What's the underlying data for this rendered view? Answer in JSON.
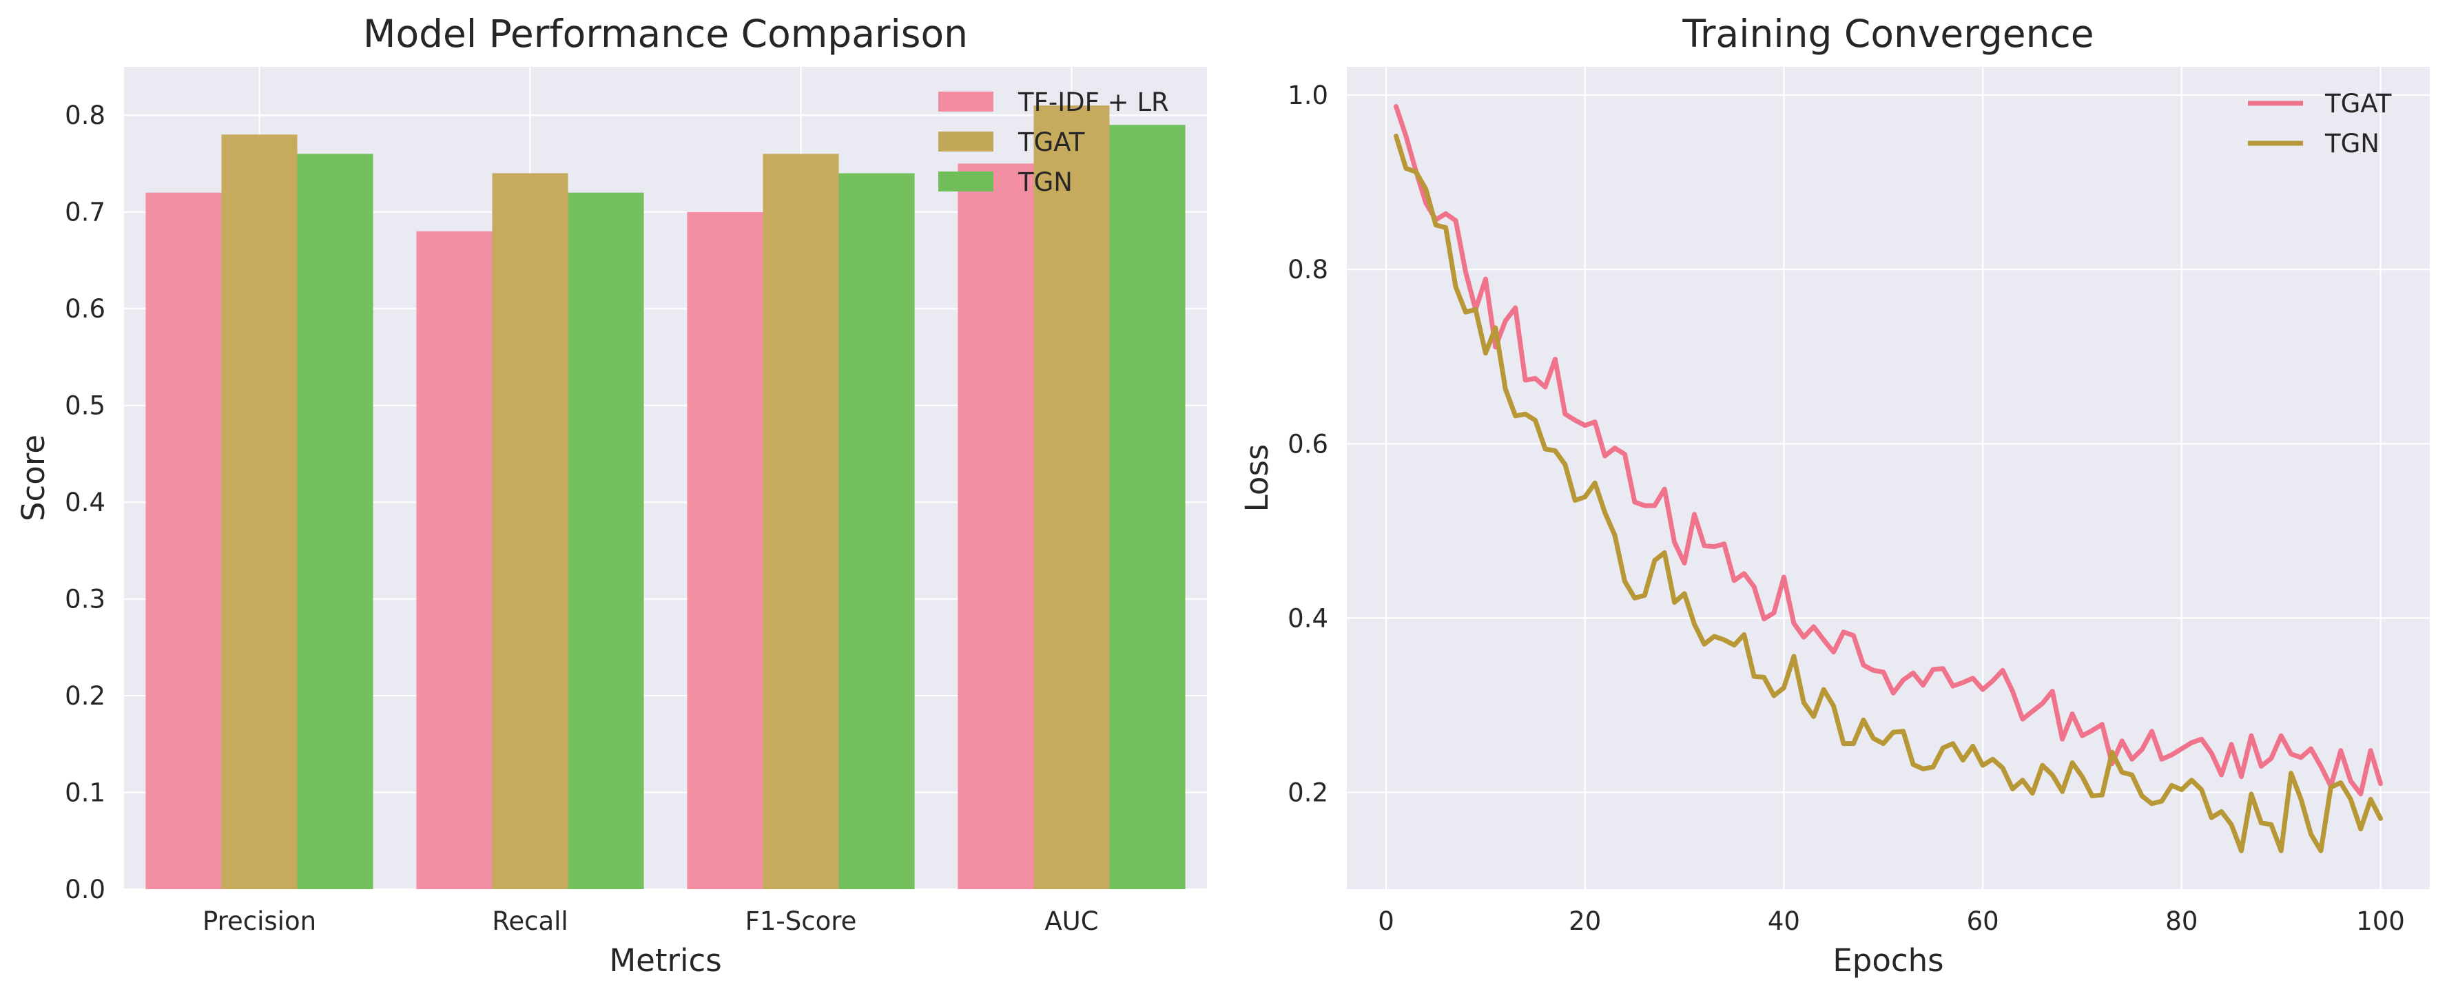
{
  "chart_data": [
    {
      "type": "bar",
      "title": "Model Performance Comparison",
      "xlabel": "Metrics",
      "ylabel": "Score",
      "categories": [
        "Precision",
        "Recall",
        "F1-Score",
        "AUC"
      ],
      "ylim": [
        0,
        0.85
      ],
      "yticks": [
        "0.0",
        "0.1",
        "0.2",
        "0.3",
        "0.4",
        "0.5",
        "0.6",
        "0.7",
        "0.8"
      ],
      "grid": true,
      "legend_position": "top-right",
      "series": [
        {
          "name": "TF-IDF + LR",
          "color": "#f38ba0",
          "values": [
            0.72,
            0.68,
            0.7,
            0.75
          ]
        },
        {
          "name": "TGAT",
          "color": "#c4a85a",
          "values": [
            0.78,
            0.74,
            0.76,
            0.81
          ]
        },
        {
          "name": "TGN",
          "color": "#6fbe5a",
          "values": [
            0.76,
            0.72,
            0.74,
            0.79
          ]
        }
      ]
    },
    {
      "type": "line",
      "title": "Training Convergence",
      "xlabel": "Epochs",
      "ylabel": "Loss",
      "xlim": [
        -3.95,
        104.95
      ],
      "ylim": [
        0.0889,
        1.0325
      ],
      "xticks": [
        "0",
        "20",
        "40",
        "60",
        "80",
        "100"
      ],
      "yticks": [
        "0.2",
        "0.4",
        "0.6",
        "0.8",
        "1.0"
      ],
      "grid": true,
      "legend_position": "top-right",
      "x_start": 1,
      "x_end": 100,
      "series": [
        {
          "name": "TGAT",
          "color": "#f0738c",
          "values": [
            0.987,
            0.953,
            0.913,
            0.876,
            0.857,
            0.864,
            0.856,
            0.797,
            0.754,
            0.789,
            0.711,
            0.741,
            0.756,
            0.673,
            0.675,
            0.665,
            0.697,
            0.634,
            0.627,
            0.621,
            0.625,
            0.586,
            0.595,
            0.588,
            0.533,
            0.529,
            0.529,
            0.548,
            0.487,
            0.463,
            0.519,
            0.483,
            0.482,
            0.485,
            0.443,
            0.451,
            0.436,
            0.399,
            0.406,
            0.447,
            0.394,
            0.378,
            0.39,
            0.375,
            0.361,
            0.384,
            0.38,
            0.346,
            0.34,
            0.338,
            0.314,
            0.329,
            0.337,
            0.323,
            0.341,
            0.342,
            0.322,
            0.326,
            0.331,
            0.318,
            0.328,
            0.34,
            0.316,
            0.284,
            0.293,
            0.302,
            0.316,
            0.261,
            0.29,
            0.265,
            0.271,
            0.278,
            0.233,
            0.259,
            0.238,
            0.249,
            0.27,
            0.238,
            0.243,
            0.25,
            0.257,
            0.261,
            0.245,
            0.22,
            0.255,
            0.218,
            0.265,
            0.23,
            0.239,
            0.265,
            0.244,
            0.24,
            0.25,
            0.23,
            0.207,
            0.248,
            0.213,
            0.198,
            0.248,
            0.21
          ]
        },
        {
          "name": "TGN",
          "color": "#b89736",
          "values": [
            0.953,
            0.916,
            0.912,
            0.892,
            0.851,
            0.848,
            0.78,
            0.751,
            0.754,
            0.704,
            0.733,
            0.663,
            0.632,
            0.634,
            0.627,
            0.594,
            0.592,
            0.576,
            0.535,
            0.539,
            0.555,
            0.521,
            0.495,
            0.442,
            0.423,
            0.426,
            0.466,
            0.475,
            0.418,
            0.428,
            0.393,
            0.37,
            0.379,
            0.375,
            0.369,
            0.381,
            0.333,
            0.332,
            0.311,
            0.32,
            0.356,
            0.303,
            0.287,
            0.318,
            0.299,
            0.256,
            0.256,
            0.283,
            0.262,
            0.256,
            0.269,
            0.27,
            0.232,
            0.227,
            0.229,
            0.251,
            0.256,
            0.237,
            0.253,
            0.231,
            0.238,
            0.228,
            0.204,
            0.214,
            0.199,
            0.231,
            0.22,
            0.201,
            0.234,
            0.218,
            0.196,
            0.197,
            0.246,
            0.223,
            0.22,
            0.196,
            0.187,
            0.19,
            0.208,
            0.203,
            0.214,
            0.203,
            0.171,
            0.178,
            0.163,
            0.133,
            0.198,
            0.165,
            0.163,
            0.133,
            0.222,
            0.192,
            0.152,
            0.133,
            0.206,
            0.211,
            0.192,
            0.158,
            0.192,
            0.17
          ]
        }
      ]
    }
  ]
}
